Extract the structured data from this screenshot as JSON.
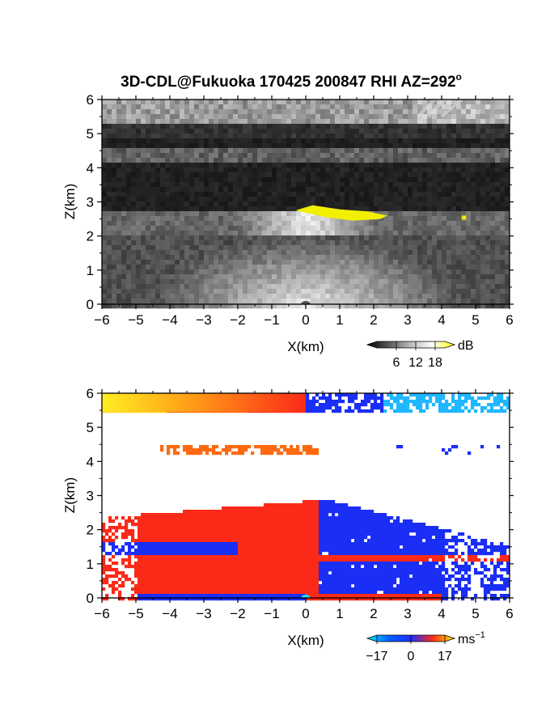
{
  "figure": {
    "title": "3D-CDL@Fukuoka 170425 200847 RHI AZ=292",
    "title_sup": "o"
  },
  "chart_data": [
    {
      "type": "heatmap",
      "name": "reflectivity",
      "title": "3D-CDL@Fukuoka 170425 200847 RHI AZ=292°",
      "xlabel": "X(km)",
      "ylabel": "Z(km)",
      "xlim": [
        -6,
        6
      ],
      "ylim": [
        0,
        6
      ],
      "xticks": [
        -6,
        -5,
        -4,
        -3,
        -2,
        -1,
        0,
        1,
        2,
        3,
        4,
        5,
        6
      ],
      "yticks": [
        0,
        1,
        2,
        3,
        4,
        5,
        6
      ],
      "colorbar": {
        "unit": "dB",
        "ticks": [
          6,
          12,
          18
        ],
        "range": [
          0,
          21
        ],
        "colors": [
          "#000000",
          "#888888",
          "#ffffff",
          "#ffff00"
        ]
      },
      "features": [
        {
          "desc": "bright layer",
          "x_range": [
            -6,
            6
          ],
          "z_range": [
            5.3,
            6.0
          ],
          "value_db": 10
        },
        {
          "desc": "faint layer",
          "x_range": [
            -6,
            3.5
          ],
          "z_range": [
            4.2,
            4.6
          ],
          "value_db": 7
        },
        {
          "desc": "strong echo (yellow)",
          "x_range": [
            -0.3,
            2.4
          ],
          "z_range": [
            2.5,
            2.9
          ],
          "value_db": 20
        },
        {
          "desc": "boundary layer",
          "x_range": [
            -6,
            6
          ],
          "z_range": [
            0,
            2.8
          ],
          "value_db": 12
        }
      ]
    },
    {
      "type": "heatmap",
      "name": "velocity",
      "xlabel": "X(km)",
      "ylabel": "Z(km)",
      "xlim": [
        -6,
        6
      ],
      "ylim": [
        0,
        6
      ],
      "xticks": [
        -6,
        -5,
        -4,
        -3,
        -2,
        -1,
        0,
        1,
        2,
        3,
        4,
        5,
        6
      ],
      "yticks": [
        0,
        1,
        2,
        3,
        4,
        5,
        6
      ],
      "colorbar": {
        "unit": "ms",
        "unit_sup": "−1",
        "tick_labels": [
          "−17",
          "0",
          "17"
        ],
        "ticks": [
          -17,
          0,
          17
        ],
        "colors": [
          "#00e5ff",
          "#1f2fff",
          "#ff2a1a",
          "#ffee00"
        ]
      },
      "features": [
        {
          "desc": "upper layer toward",
          "x_range": [
            -6,
            0
          ],
          "z_range": [
            5.4,
            6.0
          ],
          "velocity": 14
        },
        {
          "desc": "upper layer away",
          "x_range": [
            0,
            6
          ],
          "z_range": [
            5.4,
            6.0
          ],
          "velocity": -12
        },
        {
          "desc": "mid layer",
          "x_range": [
            -4.3,
            0.3
          ],
          "z_range": [
            4.2,
            4.6
          ],
          "velocity": 5
        },
        {
          "desc": "lower region red",
          "x_range": [
            -6,
            0.3
          ],
          "z_range": [
            0,
            2.9
          ],
          "velocity": 4
        },
        {
          "desc": "lower region blue",
          "x_range": [
            0.3,
            6
          ],
          "z_range": [
            0,
            3.0
          ],
          "velocity": -8
        }
      ]
    }
  ]
}
